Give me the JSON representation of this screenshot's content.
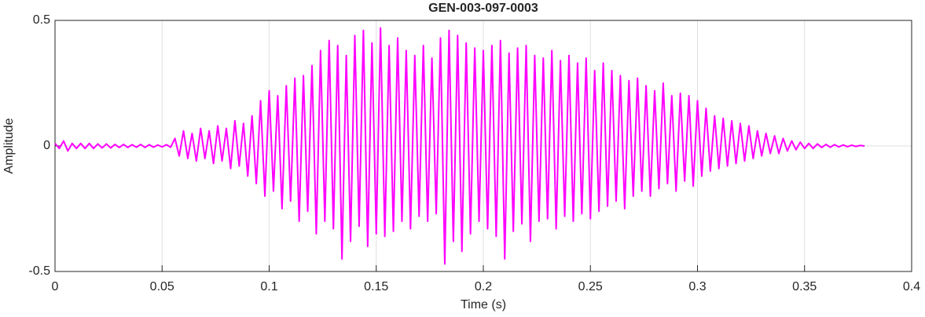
{
  "chart_data": {
    "type": "line",
    "title": "GEN-003-097-0003",
    "x_label": "Time (s)",
    "y_label": "Amplitude",
    "xlim": [
      0,
      0.4
    ],
    "xticks": [
      0,
      0.05,
      0.1,
      0.15,
      0.2,
      0.25,
      0.3,
      0.35,
      0.4
    ],
    "ylim": [
      -0.5,
      0.5
    ],
    "yticks": [
      -0.5,
      0,
      0.5
    ],
    "grid": true,
    "series": [
      {
        "color": "#ff00ff",
        "x": [
          0,
          0.002,
          0.004,
          0.006,
          0.008,
          0.01,
          0.012,
          0.014,
          0.016,
          0.018,
          0.02,
          0.022,
          0.024,
          0.026,
          0.028,
          0.03,
          0.032,
          0.034,
          0.036,
          0.038,
          0.04,
          0.042,
          0.044,
          0.046,
          0.048,
          0.05,
          0.052,
          0.054,
          0.056,
          0.058,
          0.06,
          0.062,
          0.064,
          0.066,
          0.068,
          0.07,
          0.072,
          0.074,
          0.076,
          0.078,
          0.08,
          0.082,
          0.084,
          0.086,
          0.088,
          0.09,
          0.092,
          0.094,
          0.096,
          0.098,
          0.1,
          0.102,
          0.104,
          0.106,
          0.108,
          0.11,
          0.112,
          0.114,
          0.116,
          0.118,
          0.12,
          0.122,
          0.124,
          0.126,
          0.128,
          0.13,
          0.132,
          0.134,
          0.136,
          0.138,
          0.14,
          0.142,
          0.144,
          0.146,
          0.148,
          0.15,
          0.152,
          0.154,
          0.156,
          0.158,
          0.16,
          0.162,
          0.164,
          0.166,
          0.168,
          0.17,
          0.172,
          0.174,
          0.176,
          0.178,
          0.18,
          0.182,
          0.184,
          0.186,
          0.188,
          0.19,
          0.192,
          0.194,
          0.196,
          0.198,
          0.2,
          0.202,
          0.204,
          0.206,
          0.208,
          0.21,
          0.212,
          0.214,
          0.216,
          0.218,
          0.22,
          0.222,
          0.224,
          0.226,
          0.228,
          0.23,
          0.232,
          0.234,
          0.236,
          0.238,
          0.24,
          0.242,
          0.244,
          0.246,
          0.248,
          0.25,
          0.252,
          0.254,
          0.256,
          0.258,
          0.26,
          0.262,
          0.264,
          0.266,
          0.268,
          0.27,
          0.272,
          0.274,
          0.276,
          0.278,
          0.28,
          0.282,
          0.284,
          0.286,
          0.288,
          0.29,
          0.292,
          0.294,
          0.296,
          0.298,
          0.3,
          0.302,
          0.304,
          0.306,
          0.308,
          0.31,
          0.312,
          0.314,
          0.316,
          0.318,
          0.32,
          0.322,
          0.324,
          0.326,
          0.328,
          0.33,
          0.332,
          0.334,
          0.336,
          0.338,
          0.34,
          0.342,
          0.344,
          0.346,
          0.348,
          0.35,
          0.352,
          0.354,
          0.356,
          0.358,
          0.36,
          0.362,
          0.364,
          0.366,
          0.368,
          0.37,
          0.372,
          0.374,
          0.376,
          0.378
        ],
        "values": [
          0.01,
          -0.01,
          0.02,
          -0.02,
          0.01,
          -0.01,
          0.01,
          -0.01,
          0.01,
          -0.01,
          0.008,
          -0.008,
          0.008,
          -0.008,
          0.006,
          -0.006,
          0.006,
          -0.006,
          0.005,
          -0.005,
          0.006,
          -0.006,
          0.005,
          -0.005,
          0.004,
          -0.004,
          0.005,
          -0.005,
          0.03,
          -0.04,
          0.06,
          -0.05,
          0.05,
          -0.06,
          0.07,
          -0.05,
          0.06,
          -0.07,
          0.08,
          -0.06,
          0.07,
          -0.09,
          0.1,
          -0.08,
          0.09,
          -0.12,
          0.12,
          -0.15,
          0.18,
          -0.2,
          0.22,
          -0.18,
          0.2,
          -0.25,
          0.24,
          -0.22,
          0.27,
          -0.3,
          0.28,
          -0.26,
          0.32,
          -0.35,
          0.38,
          -0.3,
          0.42,
          -0.33,
          0.4,
          -0.45,
          0.36,
          -0.38,
          0.44,
          -0.32,
          0.46,
          -0.4,
          0.41,
          -0.35,
          0.47,
          -0.36,
          0.4,
          -0.34,
          0.43,
          -0.3,
          0.38,
          -0.33,
          0.36,
          -0.28,
          0.4,
          -0.3,
          0.35,
          -0.27,
          0.43,
          -0.47,
          0.46,
          -0.38,
          0.44,
          -0.42,
          0.41,
          -0.35,
          0.39,
          -0.3,
          0.38,
          -0.33,
          0.4,
          -0.36,
          0.42,
          -0.45,
          0.37,
          -0.34,
          0.39,
          -0.31,
          0.4,
          -0.38,
          0.36,
          -0.3,
          0.35,
          -0.29,
          0.38,
          -0.33,
          0.34,
          -0.28,
          0.36,
          -0.3,
          0.33,
          -0.27,
          0.35,
          -0.29,
          0.3,
          -0.26,
          0.33,
          -0.24,
          0.3,
          -0.22,
          0.28,
          -0.25,
          0.26,
          -0.2,
          0.27,
          -0.18,
          0.24,
          -0.2,
          0.22,
          -0.17,
          0.25,
          -0.15,
          0.2,
          -0.18,
          0.21,
          -0.14,
          0.2,
          -0.16,
          0.18,
          -0.12,
          0.15,
          -0.1,
          0.12,
          -0.09,
          0.11,
          -0.08,
          0.1,
          -0.07,
          0.09,
          -0.06,
          0.08,
          -0.05,
          0.06,
          -0.04,
          0.05,
          -0.03,
          0.04,
          -0.03,
          0.03,
          -0.02,
          0.02,
          -0.015,
          0.015,
          -0.01,
          0.01,
          -0.01,
          0.008,
          -0.006,
          0.006,
          -0.005,
          0.005,
          -0.004,
          0.004,
          -0.003,
          0.003,
          -0.002,
          0.002,
          0
        ]
      }
    ]
  }
}
